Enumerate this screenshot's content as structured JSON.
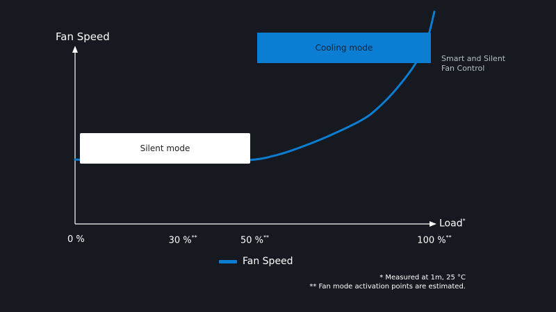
{
  "chart_data": {
    "type": "line",
    "ylabel": "Fan Speed",
    "xlabel": "Load",
    "xlabel_mark": "*",
    "xlim": [
      0,
      100
    ],
    "ticks": [
      {
        "value": 0,
        "label": "0 %",
        "mark": ""
      },
      {
        "value": 30,
        "label": "30 %",
        "mark": "**"
      },
      {
        "value": 50,
        "label": "50 %",
        "mark": "**"
      },
      {
        "value": 100,
        "label": "100 %",
        "mark": "**"
      }
    ],
    "series": [
      {
        "name": "Fan Speed",
        "color": "#0b7ed3",
        "x": [
          0,
          20,
          40,
          50,
          55,
          60,
          70,
          80,
          85,
          90,
          95,
          98,
          100
        ],
        "y": [
          0.37,
          0.36,
          0.36,
          0.37,
          0.39,
          0.42,
          0.5,
          0.6,
          0.68,
          0.79,
          0.93,
          1.06,
          1.22
        ]
      }
    ],
    "regions": [
      {
        "label": "Silent mode",
        "x_start": 0,
        "x_end": 50,
        "fill": "#ffffff"
      },
      {
        "label": "Cooling mode",
        "x_start": 52,
        "x_end": 104,
        "fill": "#0b7ed3"
      }
    ],
    "annotation": [
      "Smart and Silent",
      "Fan Control"
    ],
    "legend": {
      "label": "Fan Speed",
      "position": "bottom"
    },
    "footnotes": [
      "* Measured at 1m, 25 °C",
      "** Fan mode activation points are estimated."
    ],
    "grid": false
  }
}
